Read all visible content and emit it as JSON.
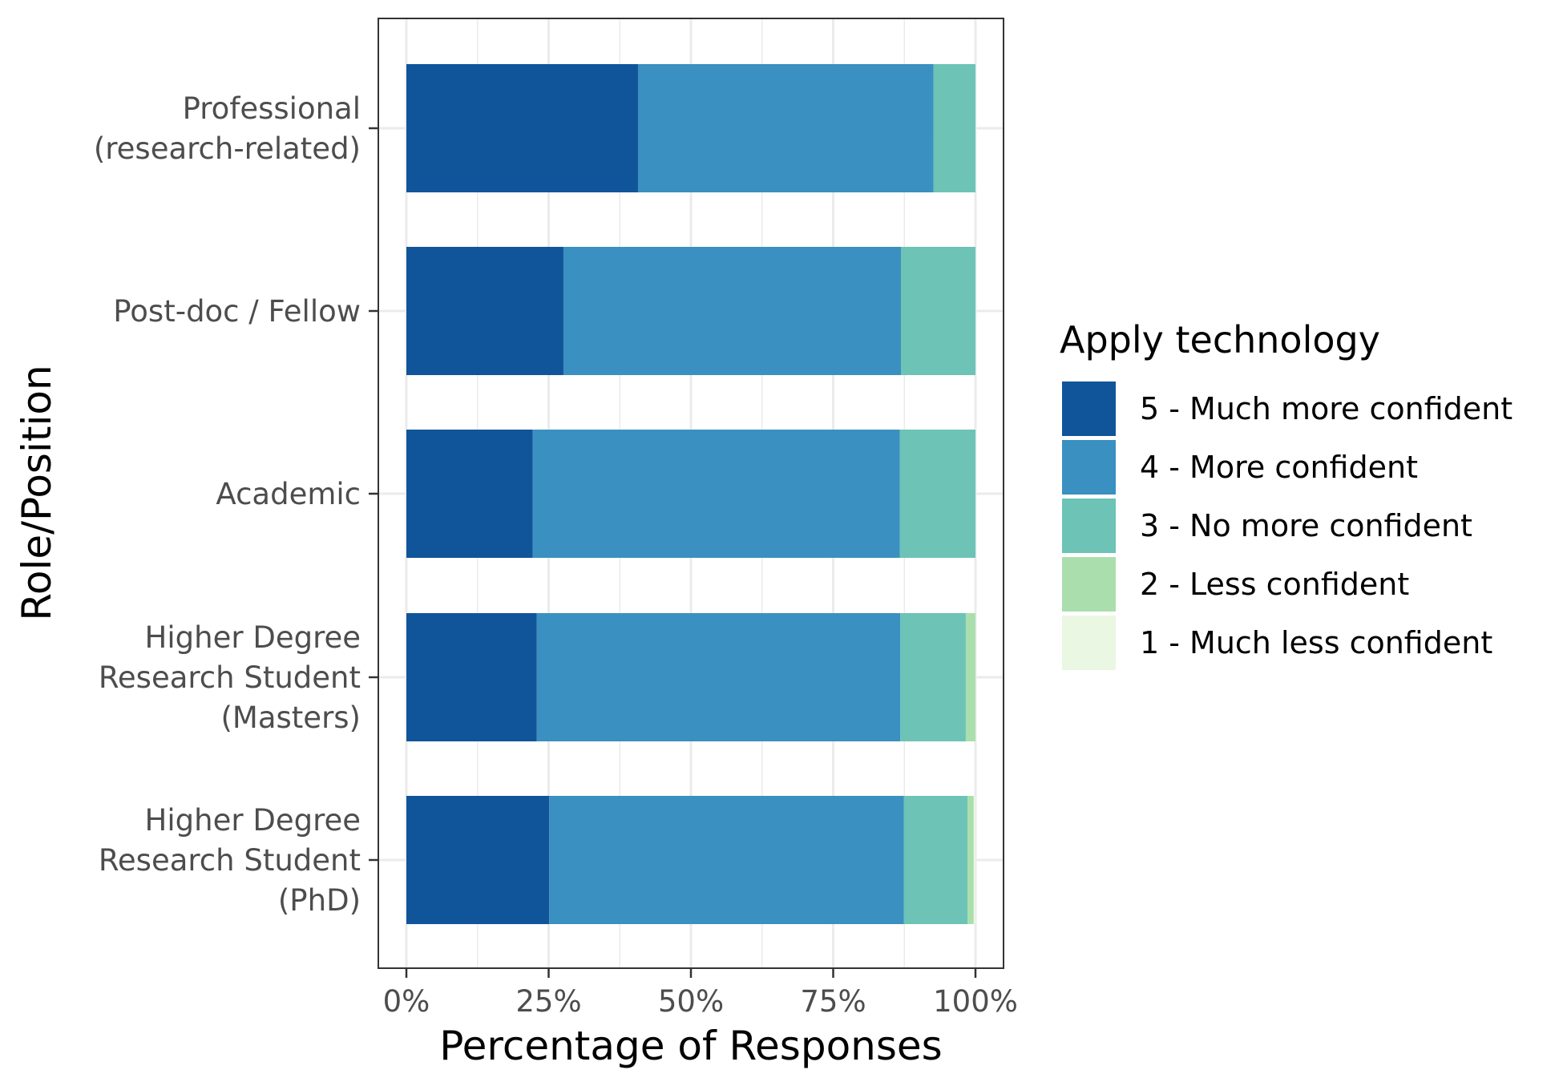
{
  "chart_data": {
    "type": "bar",
    "orientation": "horizontal",
    "stacked": true,
    "categories": [
      "Professional\n(research-related)",
      "Post-doc / Fellow",
      "Academic",
      "Higher Degree\nResearch Student\n(Masters)",
      "Higher Degree\nResearch Student\n(PhD)"
    ],
    "series": [
      {
        "name": "5 - Much more confident",
        "color": "#10559a",
        "values": [
          40.7,
          27.6,
          22.2,
          22.9,
          25.1
        ]
      },
      {
        "name": "4 - More confident",
        "color": "#3a90c0",
        "values": [
          51.9,
          59.3,
          64.5,
          63.9,
          62.3
        ]
      },
      {
        "name": "3 - No more confident",
        "color": "#6cc3b6",
        "values": [
          7.4,
          13.1,
          13.3,
          11.5,
          11.2
        ]
      },
      {
        "name": "2 - Less confident",
        "color": "#aadfad",
        "values": [
          0,
          0,
          0,
          1.7,
          1.1
        ]
      },
      {
        "name": "1 - Much less confident",
        "color": "#eaf7e3",
        "values": [
          0,
          0,
          0,
          0,
          0.3
        ]
      }
    ],
    "xlabel": "Percentage of Responses",
    "ylabel": "Role/Position",
    "xlim": [
      0,
      100
    ],
    "xticks": [
      "0%",
      "25%",
      "50%",
      "75%",
      "100%"
    ],
    "legend_title": "Apply technology",
    "legend_position": "right",
    "grid": true
  }
}
